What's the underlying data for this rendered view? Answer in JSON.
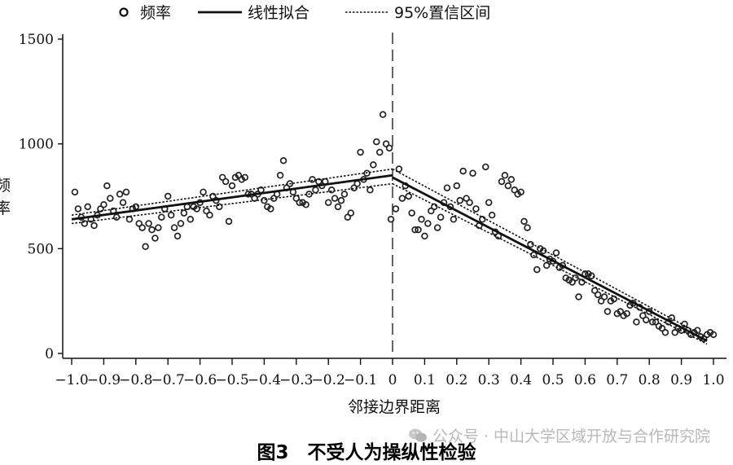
{
  "chart_data": {
    "type": "scatter",
    "xlabel": "邻接边界距离",
    "ylabel": "频率",
    "xlim": [
      -1.0,
      1.0
    ],
    "ylim": [
      0,
      1500
    ],
    "xticks": [
      "-1.0",
      "-0.9",
      "-0.8",
      "-0.7",
      "-0.6",
      "-0.5",
      "-0.4",
      "-0.3",
      "-0.2",
      "-0.1",
      "0",
      "0.1",
      "0.2",
      "0.3",
      "0.4",
      "0.5",
      "0.6",
      "0.7",
      "0.8",
      "0.9",
      "1.0"
    ],
    "yticks": [
      "0",
      "500",
      "1000",
      "1500"
    ],
    "cutoff": 0,
    "legend": {
      "position": "top",
      "items": [
        "频率",
        "线性拟合",
        "95%置信区间"
      ]
    },
    "series": [
      {
        "name": "频率",
        "points": [
          [
            -0.99,
            770
          ],
          [
            -0.98,
            690
          ],
          [
            -0.97,
            650
          ],
          [
            -0.96,
            620
          ],
          [
            -0.95,
            700
          ],
          [
            -0.94,
            640
          ],
          [
            -0.93,
            610
          ],
          [
            -0.92,
            660
          ],
          [
            -0.91,
            690
          ],
          [
            -0.9,
            710
          ],
          [
            -0.89,
            800
          ],
          [
            -0.88,
            740
          ],
          [
            -0.87,
            680
          ],
          [
            -0.86,
            650
          ],
          [
            -0.85,
            760
          ],
          [
            -0.84,
            720
          ],
          [
            -0.83,
            770
          ],
          [
            -0.82,
            640
          ],
          [
            -0.81,
            690
          ],
          [
            -0.8,
            700
          ],
          [
            -0.79,
            620
          ],
          [
            -0.78,
            600
          ],
          [
            -0.77,
            510
          ],
          [
            -0.76,
            620
          ],
          [
            -0.75,
            590
          ],
          [
            -0.74,
            550
          ],
          [
            -0.73,
            600
          ],
          [
            -0.72,
            650
          ],
          [
            -0.71,
            690
          ],
          [
            -0.7,
            750
          ],
          [
            -0.69,
            660
          ],
          [
            -0.68,
            600
          ],
          [
            -0.67,
            560
          ],
          [
            -0.66,
            620
          ],
          [
            -0.65,
            670
          ],
          [
            -0.64,
            700
          ],
          [
            -0.63,
            640
          ],
          [
            -0.62,
            700
          ],
          [
            -0.61,
            690
          ],
          [
            -0.6,
            720
          ],
          [
            -0.59,
            770
          ],
          [
            -0.58,
            680
          ],
          [
            -0.57,
            660
          ],
          [
            -0.56,
            750
          ],
          [
            -0.55,
            730
          ],
          [
            -0.54,
            700
          ],
          [
            -0.53,
            840
          ],
          [
            -0.52,
            820
          ],
          [
            -0.51,
            630
          ],
          [
            -0.5,
            800
          ],
          [
            -0.49,
            840
          ],
          [
            -0.48,
            850
          ],
          [
            -0.47,
            830
          ],
          [
            -0.46,
            840
          ],
          [
            -0.45,
            760
          ],
          [
            -0.44,
            760
          ],
          [
            -0.43,
            740
          ],
          [
            -0.42,
            760
          ],
          [
            -0.41,
            780
          ],
          [
            -0.4,
            730
          ],
          [
            -0.39,
            700
          ],
          [
            -0.38,
            690
          ],
          [
            -0.37,
            740
          ],
          [
            -0.36,
            760
          ],
          [
            -0.35,
            850
          ],
          [
            -0.34,
            920
          ],
          [
            -0.33,
            790
          ],
          [
            -0.32,
            810
          ],
          [
            -0.31,
            770
          ],
          [
            -0.3,
            740
          ],
          [
            -0.29,
            720
          ],
          [
            -0.28,
            720
          ],
          [
            -0.27,
            710
          ],
          [
            -0.26,
            760
          ],
          [
            -0.25,
            830
          ],
          [
            -0.24,
            780
          ],
          [
            -0.23,
            820
          ],
          [
            -0.22,
            800
          ],
          [
            -0.21,
            820
          ],
          [
            -0.2,
            720
          ],
          [
            -0.19,
            780
          ],
          [
            -0.18,
            740
          ],
          [
            -0.17,
            700
          ],
          [
            -0.16,
            730
          ],
          [
            -0.15,
            760
          ],
          [
            -0.14,
            650
          ],
          [
            -0.13,
            670
          ],
          [
            -0.12,
            790
          ],
          [
            -0.11,
            810
          ],
          [
            -0.1,
            960
          ],
          [
            -0.09,
            830
          ],
          [
            -0.08,
            860
          ],
          [
            -0.07,
            780
          ],
          [
            -0.06,
            900
          ],
          [
            -0.05,
            1010
          ],
          [
            -0.04,
            960
          ],
          [
            -0.03,
            1140
          ],
          [
            -0.02,
            1000
          ],
          [
            -0.01,
            980
          ],
          [
            -0.005,
            640
          ],
          [
            0.01,
            690
          ],
          [
            0.02,
            880
          ],
          [
            0.03,
            740
          ],
          [
            0.04,
            800
          ],
          [
            0.05,
            750
          ],
          [
            0.06,
            670
          ],
          [
            0.07,
            590
          ],
          [
            0.08,
            590
          ],
          [
            0.09,
            640
          ],
          [
            0.1,
            560
          ],
          [
            0.11,
            620
          ],
          [
            0.12,
            680
          ],
          [
            0.13,
            700
          ],
          [
            0.14,
            600
          ],
          [
            0.15,
            650
          ],
          [
            0.16,
            720
          ],
          [
            0.17,
            790
          ],
          [
            0.18,
            700
          ],
          [
            0.19,
            640
          ],
          [
            0.2,
            800
          ],
          [
            0.21,
            730
          ],
          [
            0.22,
            870
          ],
          [
            0.23,
            740
          ],
          [
            0.24,
            720
          ],
          [
            0.25,
            860
          ],
          [
            0.26,
            690
          ],
          [
            0.27,
            610
          ],
          [
            0.28,
            640
          ],
          [
            0.29,
            890
          ],
          [
            0.3,
            720
          ],
          [
            0.31,
            660
          ],
          [
            0.32,
            580
          ],
          [
            0.33,
            560
          ],
          [
            0.34,
            820
          ],
          [
            0.35,
            850
          ],
          [
            0.36,
            800
          ],
          [
            0.37,
            830
          ],
          [
            0.38,
            780
          ],
          [
            0.39,
            760
          ],
          [
            0.4,
            770
          ],
          [
            0.41,
            630
          ],
          [
            0.42,
            600
          ],
          [
            0.43,
            520
          ],
          [
            0.44,
            470
          ],
          [
            0.45,
            400
          ],
          [
            0.46,
            500
          ],
          [
            0.47,
            490
          ],
          [
            0.48,
            420
          ],
          [
            0.49,
            450
          ],
          [
            0.5,
            440
          ],
          [
            0.51,
            480
          ],
          [
            0.52,
            410
          ],
          [
            0.53,
            420
          ],
          [
            0.54,
            360
          ],
          [
            0.55,
            350
          ],
          [
            0.56,
            340
          ],
          [
            0.57,
            360
          ],
          [
            0.58,
            270
          ],
          [
            0.59,
            340
          ],
          [
            0.6,
            380
          ],
          [
            0.61,
            380
          ],
          [
            0.62,
            370
          ],
          [
            0.63,
            300
          ],
          [
            0.64,
            280
          ],
          [
            0.65,
            250
          ],
          [
            0.66,
            270
          ],
          [
            0.67,
            200
          ],
          [
            0.68,
            250
          ],
          [
            0.69,
            260
          ],
          [
            0.7,
            190
          ],
          [
            0.71,
            200
          ],
          [
            0.72,
            180
          ],
          [
            0.73,
            190
          ],
          [
            0.74,
            230
          ],
          [
            0.75,
            240
          ],
          [
            0.76,
            150
          ],
          [
            0.77,
            220
          ],
          [
            0.78,
            180
          ],
          [
            0.79,
            160
          ],
          [
            0.8,
            200
          ],
          [
            0.81,
            150
          ],
          [
            0.82,
            150
          ],
          [
            0.83,
            130
          ],
          [
            0.84,
            120
          ],
          [
            0.85,
            100
          ],
          [
            0.86,
            150
          ],
          [
            0.87,
            170
          ],
          [
            0.88,
            100
          ],
          [
            0.89,
            120
          ],
          [
            0.9,
            110
          ],
          [
            0.91,
            140
          ],
          [
            0.92,
            110
          ],
          [
            0.93,
            90
          ],
          [
            0.94,
            100
          ],
          [
            0.95,
            110
          ],
          [
            0.96,
            80
          ],
          [
            0.97,
            70
          ],
          [
            0.98,
            90
          ],
          [
            0.99,
            100
          ],
          [
            1.0,
            90
          ]
        ]
      },
      {
        "name": "线性拟合",
        "segments": [
          [
            [
              -1.0,
              640
            ],
            [
              0.0,
              850
            ]
          ],
          [
            [
              0.0,
              840
            ],
            [
              0.98,
              60
            ]
          ]
        ]
      },
      {
        "name": "95%置信区间",
        "segments": [
          [
            [
              -1.0,
              660
            ],
            [
              0.0,
              880
            ]
          ],
          [
            [
              -1.0,
              620
            ],
            [
              0.0,
              810
            ]
          ],
          [
            [
              0.0,
              880
            ],
            [
              0.98,
              75
            ]
          ],
          [
            [
              0.0,
              810
            ],
            [
              0.98,
              45
            ]
          ]
        ]
      }
    ],
    "caption": "图3　不受人为操纵性检验"
  },
  "watermark": {
    "icon": "wechat-icon",
    "text": "公众号 · 中山大学区域开放与合作研究院"
  }
}
